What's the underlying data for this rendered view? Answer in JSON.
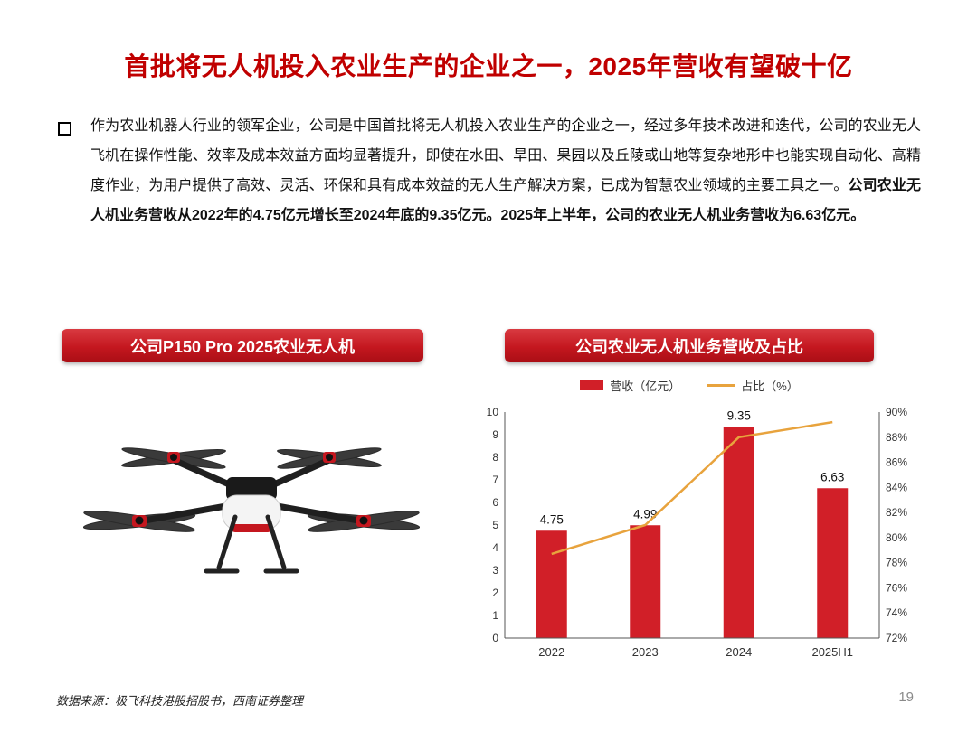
{
  "slide": {
    "title": "首批将无人机投入农业生产的企业之一，2025年营收有望破十亿",
    "body_regular": "作为农业机器人行业的领军企业，公司是中国首批将无人机投入农业生产的企业之一，经过多年技术改进和迭代，公司的农业无人飞机在操作性能、效率及成本效益方面均显著提升，即使在水田、旱田、果园以及丘陵或山地等复杂地形中也能实现自动化、高精度作业，为用户提供了高效、灵活、环保和具有成本效益的无人生产解决方案，已成为智慧农业领域的主要工具之一。",
    "body_bold": "公司农业无人机业务营收从2022年的4.75亿元增长至2024年底的9.35亿元。2025年上半年，公司的农业无人机业务营收为6.63亿元。",
    "left_banner": "公司P150 Pro 2025农业无人机",
    "right_banner": "公司农业无人机业务营收及占比",
    "source": "数据来源：极飞科技港股招股书，西南证券整理",
    "page_number": "19"
  },
  "colors": {
    "title_red": "#c00000",
    "banner_red": "#c4171f",
    "bar_red": "#d11f28",
    "line_orange": "#e8a33d"
  },
  "chart_data": {
    "type": "bar",
    "subtype": "bar+line combo, dual axis",
    "title": "公司农业无人机业务营收及占比",
    "categories": [
      "2022",
      "2023",
      "2024",
      "2025H1"
    ],
    "series": [
      {
        "name": "营收（亿元）",
        "type": "bar",
        "axis": "left",
        "values": [
          4.75,
          4.99,
          9.35,
          6.63
        ],
        "color": "#d11f28"
      },
      {
        "name": "占比（%）",
        "type": "line",
        "axis": "right",
        "values": [
          78.7,
          81.0,
          88.0,
          89.2
        ],
        "color": "#e8a33d"
      }
    ],
    "bar_labels": [
      "4.75",
      "4.99",
      "9.35",
      "6.63"
    ],
    "left_axis": {
      "min": 0,
      "max": 10,
      "step": 1
    },
    "right_axis": {
      "min": 72,
      "max": 90,
      "step": 2,
      "suffix": "%"
    },
    "grid": false,
    "legend_position": "top"
  }
}
